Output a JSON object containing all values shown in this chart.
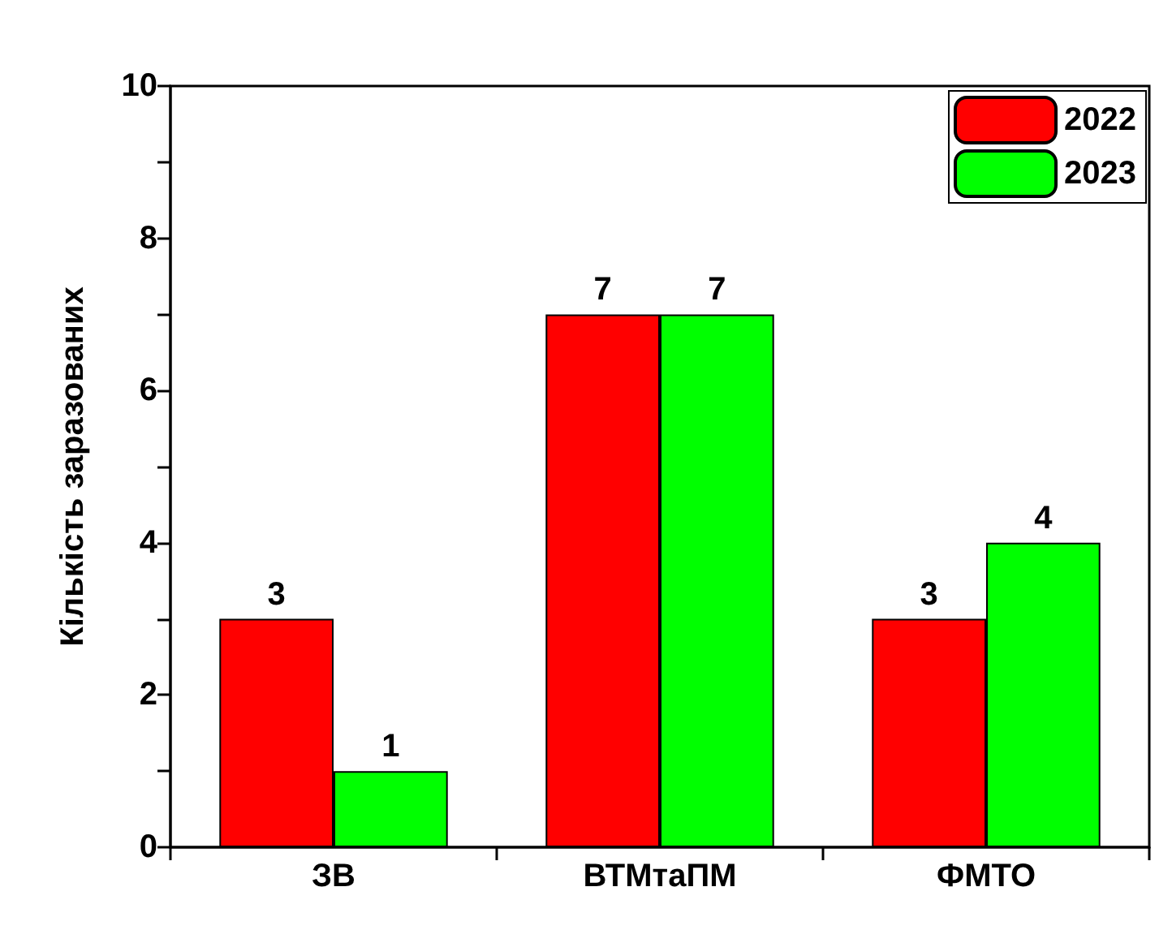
{
  "chart_data": {
    "type": "bar",
    "ylabel": "Кількість заразованих",
    "categories": [
      "ЗВ",
      "ВТМтаПМ",
      "ФМТО"
    ],
    "series": [
      {
        "name": "2022",
        "color": "#ff0000",
        "values": [
          3,
          7,
          3
        ]
      },
      {
        "name": "2023",
        "color": "#00ff00",
        "values": [
          1,
          7,
          4
        ]
      }
    ],
    "ylim": [
      0,
      10
    ],
    "yticks": [
      0,
      {
        "value": 1,
        "label": null
      },
      2,
      {
        "value": 3,
        "label": null
      },
      4,
      {
        "value": 5,
        "label": null
      },
      6,
      {
        "value": 7,
        "label": null
      },
      8,
      {
        "value": 9,
        "label": null
      },
      10
    ],
    "data_labels": true,
    "legend": "top right",
    "grid": false
  }
}
